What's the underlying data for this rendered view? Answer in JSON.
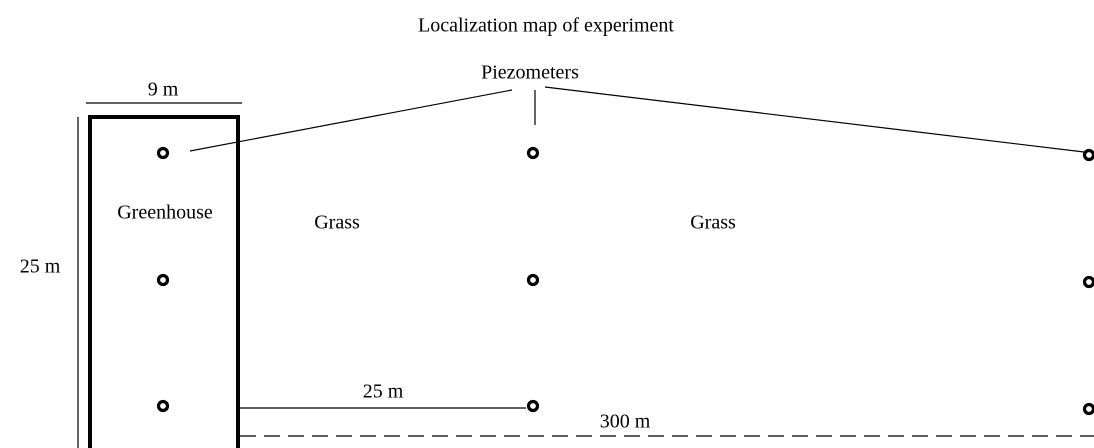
{
  "title": "Localization map of experiment",
  "callout": "Piezometers",
  "dimensions": {
    "width": "9 m",
    "height": "25 m",
    "spacing": "25 m",
    "length": "300 m"
  },
  "areas": [
    "Greenhouse",
    "Grass",
    "Grass"
  ]
}
